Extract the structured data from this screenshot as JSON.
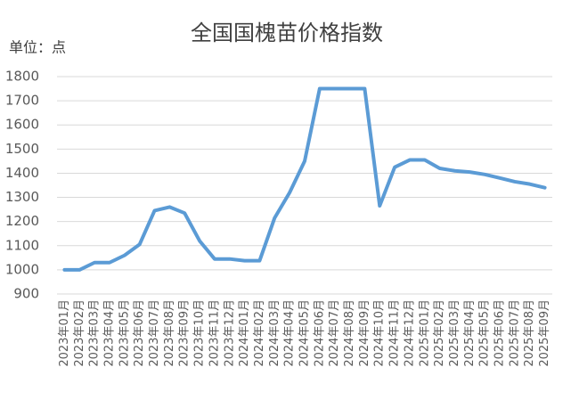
{
  "chart_data": {
    "type": "line",
    "title": "全国国槐苗价格指数",
    "unit_label": "单位：点",
    "categories": [
      "2023年01月",
      "2023年02月",
      "2023年03月",
      "2023年04月",
      "2023年05月",
      "2023年06月",
      "2023年07月",
      "2023年08月",
      "2023年09月",
      "2023年10月",
      "2023年11月",
      "2023年12月",
      "2024年01月",
      "2024年02月",
      "2024年03月",
      "2024年04月",
      "2024年05月",
      "2024年06月",
      "2024年07月",
      "2024年08月",
      "2024年09月",
      "2024年10月",
      "2024年11月",
      "2024年12月",
      "2025年01月",
      "2025年02月",
      "2025年03月",
      "2025年04月",
      "2025年05月",
      "2025年06月",
      "2025年07月",
      "2025年08月",
      "2025年09月"
    ],
    "values": [
      1000,
      1000,
      1030,
      1030,
      1060,
      1105,
      1245,
      1260,
      1235,
      1120,
      1045,
      1045,
      1038,
      1038,
      1215,
      1320,
      1450,
      1750,
      1750,
      1750,
      1750,
      1265,
      1425,
      1455,
      1455,
      1420,
      1410,
      1405,
      1395,
      1380,
      1365,
      1355,
      1340
    ],
    "color": "#5b9bd5",
    "ylim": [
      900,
      1800
    ],
    "yticks": [
      900,
      1000,
      1100,
      1200,
      1300,
      1400,
      1500,
      1600,
      1700,
      1800
    ],
    "grid": true
  }
}
